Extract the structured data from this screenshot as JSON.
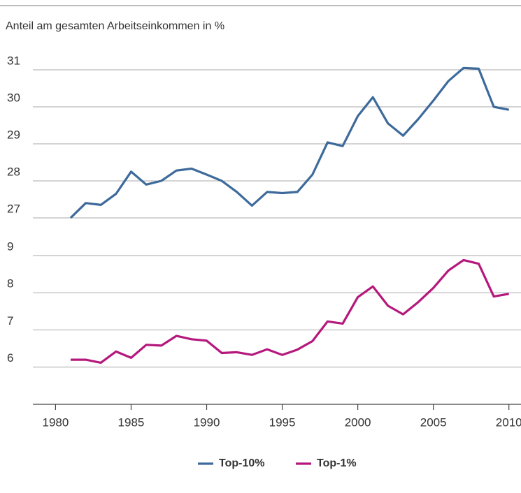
{
  "chart_data": {
    "type": "line",
    "title": "Anteil am gesamten Arbeitseinkommen in %",
    "x": [
      1981,
      1982,
      1983,
      1984,
      1985,
      1986,
      1987,
      1988,
      1989,
      1990,
      1991,
      1992,
      1993,
      1994,
      1995,
      1996,
      1997,
      1998,
      1999,
      2000,
      2001,
      2002,
      2003,
      2004,
      2005,
      2006,
      2007,
      2008,
      2009,
      2010
    ],
    "series": [
      {
        "name": "Top-10%",
        "color": "#3d6a9b",
        "values": [
          27.0,
          27.4,
          27.35,
          27.65,
          28.25,
          27.9,
          28.0,
          28.28,
          28.33,
          28.17,
          28.0,
          27.7,
          27.33,
          27.7,
          27.67,
          27.7,
          28.17,
          29.04,
          28.94,
          29.75,
          30.26,
          29.55,
          29.22,
          29.67,
          30.17,
          30.7,
          31.05,
          31.03,
          30.0,
          29.92
        ]
      },
      {
        "name": "Top-1%",
        "color": "#b5187c",
        "axis": "y2",
        "values": [
          6.2,
          6.2,
          6.12,
          6.42,
          6.25,
          6.6,
          6.58,
          6.84,
          6.75,
          6.71,
          6.38,
          6.4,
          6.33,
          6.48,
          6.33,
          6.47,
          6.7,
          7.23,
          7.17,
          7.88,
          8.17,
          7.65,
          7.42,
          7.75,
          8.13,
          8.6,
          8.88,
          8.78,
          7.9,
          7.97
        ]
      }
    ],
    "xlim": [
      1978.5,
      2010.8
    ],
    "xticks": [
      1980,
      1985,
      1990,
      1995,
      2000,
      2005,
      2010
    ],
    "ylim": [
      27,
      31
    ],
    "yticks": [
      27,
      28,
      29,
      30,
      31
    ],
    "y2lim": [
      5,
      9
    ],
    "y2ticks": [
      6,
      7,
      8,
      9
    ],
    "grid": true,
    "legend": "bottom"
  }
}
